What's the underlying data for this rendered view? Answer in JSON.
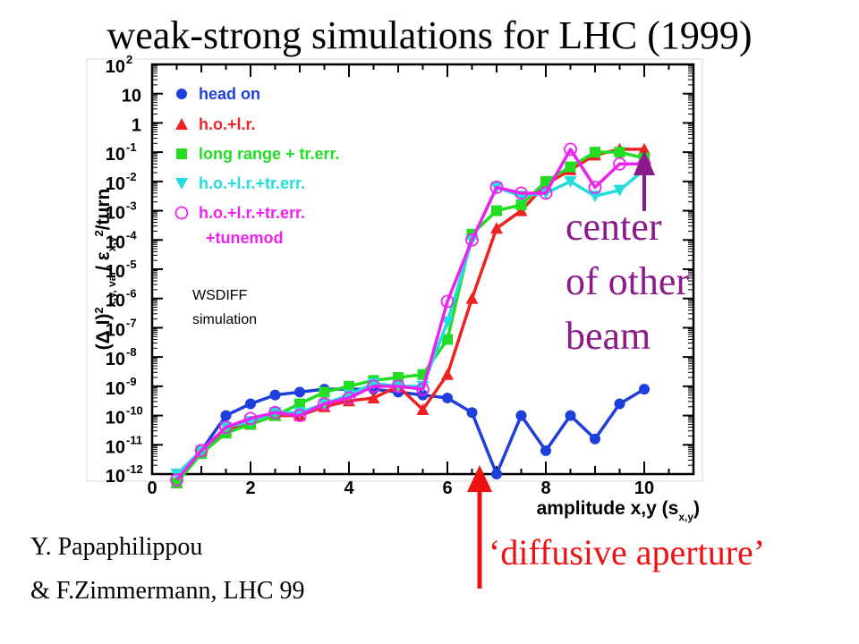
{
  "slide": {
    "title": "weak-strong simulations for LHC (1999)",
    "credit_line1": "Y. Papaphilippou",
    "credit_line2": "& F.Zimmermann, LHC 99",
    "annotation_center": [
      "center",
      "of other",
      "beam"
    ],
    "annotation_diffusive": "‘diffusive aperture’",
    "sim_note": [
      "WSDIFF",
      "simulation"
    ],
    "colors": {
      "center_annotation": "#8b1a8b",
      "diffusive_annotation": "#ee1111"
    }
  },
  "chart_data": {
    "type": "line",
    "xlabel": "amplitude x,y (s",
    "xlabel_sub": "x,y",
    "xlabel_end": ")",
    "ylabel": "(Δ I)",
    "ylabel_sup1": "2",
    "ylabel_sub1": "x,y, var",
    "ylabel_mid": "/ ε",
    "ylabel_sub2": "x,y",
    "ylabel_sup2": "2",
    "ylabel_end": "/turn",
    "xlim": [
      0,
      11
    ],
    "ylim_log10": [
      -12,
      2
    ],
    "x_ticks": [
      0,
      2,
      4,
      6,
      8,
      10
    ],
    "x_tick_labels": [
      "0",
      "2",
      "4",
      "6",
      "8",
      "10"
    ],
    "y_ticks": [
      {
        "e": 2,
        "label": "10",
        "exp": "2"
      },
      {
        "e": 1,
        "label": "10",
        "exp": ""
      },
      {
        "e": 0,
        "label": "1",
        "exp": ""
      },
      {
        "e": -1,
        "label": "10",
        "exp": "-1"
      },
      {
        "e": -2,
        "label": "10",
        "exp": "-2"
      },
      {
        "e": -3,
        "label": "10",
        "exp": "-3"
      },
      {
        "e": -4,
        "label": "10",
        "exp": "-4"
      },
      {
        "e": -5,
        "label": "10",
        "exp": "-5"
      },
      {
        "e": -6,
        "label": "10",
        "exp": "-6"
      },
      {
        "e": -7,
        "label": "10",
        "exp": "-7"
      },
      {
        "e": -8,
        "label": "10",
        "exp": "-8"
      },
      {
        "e": -9,
        "label": "10",
        "exp": "-9"
      },
      {
        "e": -10,
        "label": "10",
        "exp": "-10"
      },
      {
        "e": -11,
        "label": "10",
        "exp": "-11"
      },
      {
        "e": -12,
        "label": "10",
        "exp": "-12"
      }
    ],
    "legend_position": "top-left",
    "series": [
      {
        "name": "head on",
        "color": "#1f3fdc",
        "marker": "circle",
        "x": [
          0.5,
          1,
          1.5,
          2,
          2.5,
          3,
          3.5,
          4,
          4.5,
          5,
          5.5,
          6,
          6.5,
          7,
          7.5,
          8,
          8.5,
          9,
          9.5,
          10
        ],
        "y_log10": [
          -12.3,
          -11.2,
          -10.0,
          -9.6,
          -9.3,
          -9.2,
          -9.1,
          -9.1,
          -9.1,
          -9.2,
          -9.3,
          -9.4,
          -9.9,
          -12.0,
          -10.0,
          -11.2,
          -10.0,
          -10.8,
          -9.6,
          -9.1
        ]
      },
      {
        "name": "h.o.+l.r.",
        "color": "#ee2222",
        "marker": "triangle-up",
        "x": [
          0.5,
          1,
          1.5,
          2,
          2.5,
          3,
          3.5,
          4,
          4.5,
          5,
          5.5,
          6,
          6.5,
          7,
          7.5,
          8,
          8.5,
          9,
          9.5,
          10
        ],
        "y_log10": [
          -12.3,
          -11.2,
          -10.5,
          -10.3,
          -10.0,
          -10.0,
          -9.7,
          -9.5,
          -9.4,
          -9.0,
          -9.8,
          -8.6,
          -6.0,
          -3.6,
          -3.0,
          -2.1,
          -1.6,
          -1.1,
          -0.9,
          -0.9
        ]
      },
      {
        "name": "long range + tr.err.",
        "color": "#22dd22",
        "marker": "square",
        "x": [
          0.5,
          1,
          1.5,
          2,
          2.5,
          3,
          3.5,
          4,
          4.5,
          5,
          5.5,
          6,
          6.5,
          7,
          7.5,
          8,
          8.5,
          9,
          9.5,
          10
        ],
        "y_log10": [
          -12.3,
          -11.3,
          -10.6,
          -10.3,
          -10.0,
          -9.6,
          -9.2,
          -9.0,
          -8.8,
          -8.7,
          -8.6,
          -7.4,
          -3.8,
          -3.0,
          -2.8,
          -2.0,
          -1.5,
          -1.0,
          -1.0,
          -1.2
        ]
      },
      {
        "name": "h.o.+l.r.+tr.err.",
        "color": "#22dddd",
        "marker": "triangle-down",
        "x": [
          0.5,
          1,
          1.5,
          2,
          2.5,
          3,
          3.5,
          4,
          4.5,
          5,
          5.5,
          6,
          6.5,
          7,
          7.5,
          8,
          8.5,
          9,
          9.5,
          10
        ],
        "y_log10": [
          -12.0,
          -11.2,
          -10.4,
          -10.2,
          -9.9,
          -9.9,
          -9.6,
          -9.3,
          -8.9,
          -9.0,
          -9.0,
          -6.8,
          -4.0,
          -2.2,
          -2.5,
          -2.4,
          -2.0,
          -2.5,
          -2.3,
          -1.6
        ]
      },
      {
        "name": "h.o.+l.r.+tr.err.",
        "name_line2": "+tunemod",
        "color": "#ee22ee",
        "marker": "circle-open",
        "x": [
          0.5,
          1,
          1.5,
          2,
          2.5,
          3,
          3.5,
          4,
          4.5,
          5,
          5.5,
          6,
          6.5,
          7,
          7.5,
          8,
          8.5,
          9,
          9.5,
          10
        ],
        "y_log10": [
          -12.2,
          -11.2,
          -10.4,
          -10.1,
          -9.9,
          -10.0,
          -9.6,
          -9.4,
          -9.0,
          -9.0,
          -9.1,
          -6.1,
          -4.0,
          -2.2,
          -2.4,
          -2.4,
          -0.9,
          -2.2,
          -1.4,
          -1.4
        ]
      }
    ]
  }
}
